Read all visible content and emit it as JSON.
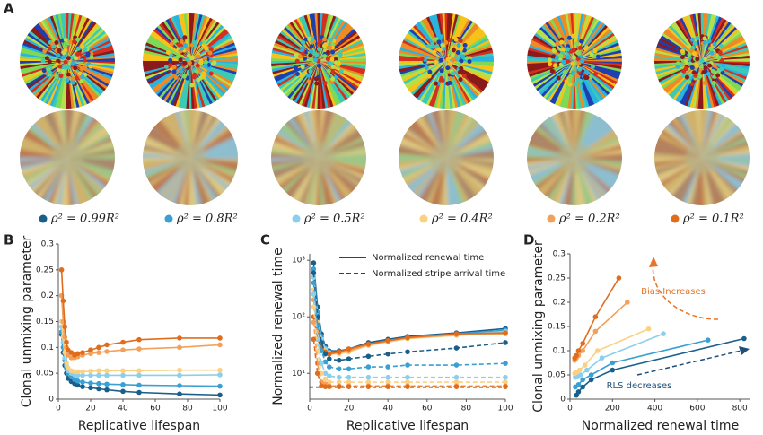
{
  "panel_a": {
    "label": "A"
  },
  "legend": [
    {
      "name": "ρ² = 0.99R²",
      "color": "#1a5f8c"
    },
    {
      "name": "ρ² = 0.8R²",
      "color": "#3a9fd2"
    },
    {
      "name": "ρ² = 0.5R²",
      "color": "#8ad0ec"
    },
    {
      "name": "ρ² = 0.4R²",
      "color": "#fbd083"
    },
    {
      "name": "ρ² = 0.2R²",
      "color": "#f3a15a"
    },
    {
      "name": "ρ² = 0.1R²",
      "color": "#e06c1c"
    }
  ],
  "chart_data": [
    {
      "label": "B",
      "type": "line",
      "xlabel": "Replicative lifespan",
      "ylabel": "Clonal unmixing parameter",
      "x": [
        2,
        3,
        4,
        5,
        6,
        8,
        10,
        12,
        15,
        20,
        25,
        30,
        40,
        50,
        75,
        100
      ],
      "xlim": [
        0,
        100
      ],
      "xticks": [
        0,
        20,
        40,
        60,
        80,
        100
      ],
      "ylim": [
        0,
        0.3
      ],
      "yticks": [
        0,
        0.05,
        0.1,
        0.15,
        0.2,
        0.25,
        0.3
      ],
      "series": [
        {
          "color": "#1a5f8c",
          "values": [
            0.125,
            0.09,
            0.065,
            0.05,
            0.04,
            0.034,
            0.03,
            0.027,
            0.024,
            0.022,
            0.02,
            0.018,
            0.015,
            0.013,
            0.01,
            0.008
          ]
        },
        {
          "color": "#3a9fd2",
          "values": [
            0.13,
            0.1,
            0.075,
            0.06,
            0.05,
            0.043,
            0.038,
            0.035,
            0.033,
            0.031,
            0.03,
            0.029,
            0.028,
            0.027,
            0.026,
            0.025
          ]
        },
        {
          "color": "#8ad0ec",
          "values": [
            0.14,
            0.11,
            0.08,
            0.065,
            0.055,
            0.05,
            0.047,
            0.046,
            0.046,
            0.046,
            0.046,
            0.046,
            0.046,
            0.046,
            0.046,
            0.047
          ]
        },
        {
          "color": "#fbd083",
          "values": [
            0.15,
            0.12,
            0.09,
            0.07,
            0.06,
            0.055,
            0.053,
            0.053,
            0.053,
            0.054,
            0.055,
            0.055,
            0.055,
            0.055,
            0.056,
            0.056
          ]
        },
        {
          "color": "#f3a15a",
          "values": [
            0.2,
            0.15,
            0.12,
            0.1,
            0.085,
            0.08,
            0.08,
            0.082,
            0.085,
            0.088,
            0.09,
            0.092,
            0.095,
            0.097,
            0.1,
            0.105
          ]
        },
        {
          "color": "#e06c1c",
          "values": [
            0.25,
            0.19,
            0.14,
            0.11,
            0.095,
            0.09,
            0.085,
            0.088,
            0.09,
            0.095,
            0.1,
            0.105,
            0.11,
            0.115,
            0.118,
            0.118
          ]
        }
      ]
    },
    {
      "label": "C",
      "type": "line",
      "log_y": true,
      "xlabel": "Replicative lifespan",
      "ylabel": "Normalized  renewal time",
      "x": [
        2,
        4,
        6,
        8,
        10,
        15,
        20,
        30,
        40,
        50,
        75,
        100
      ],
      "xlim": [
        0,
        100
      ],
      "xticks": [
        0,
        20,
        40,
        60,
        80,
        100
      ],
      "ylim": [
        3.5,
        1300
      ],
      "yticks": [
        {
          "value": 10,
          "label": "10¹"
        },
        {
          "value": 100,
          "label": "10²"
        },
        {
          "value": 1000,
          "label": "10³"
        }
      ],
      "hline": 5.7,
      "legend": [
        {
          "name": "Normalized renewal time",
          "dash": false
        },
        {
          "name": "Normalized stripe arrival time",
          "dash": true
        }
      ],
      "series": [
        {
          "color": "#1a5f8c",
          "dash": false,
          "values": [
            900,
            150,
            50,
            30,
            25,
            25,
            27,
            35,
            40,
            45,
            52,
            62
          ]
        },
        {
          "color": "#3a9fd2",
          "dash": false,
          "values": [
            700,
            120,
            45,
            28,
            24,
            24,
            26,
            33,
            38,
            43,
            50,
            58
          ]
        },
        {
          "color": "#8ad0ec",
          "dash": false,
          "values": [
            500,
            100,
            40,
            27,
            23,
            23,
            25,
            32,
            37,
            42,
            48,
            55
          ]
        },
        {
          "color": "#fbd083",
          "dash": false,
          "values": [
            300,
            80,
            35,
            25,
            22,
            22,
            24,
            31,
            36,
            41,
            47,
            52
          ]
        },
        {
          "color": "#f3a15a",
          "dash": false,
          "values": [
            200,
            60,
            30,
            24,
            22,
            23,
            25,
            32,
            37,
            42,
            48,
            50
          ]
        },
        {
          "color": "#e06c1c",
          "dash": false,
          "values": [
            100,
            40,
            28,
            24,
            22,
            24,
            27,
            33,
            38,
            43,
            50,
            52
          ]
        },
        {
          "color": "#1a5f8c",
          "dash": true,
          "values": [
            600,
            100,
            35,
            22,
            18,
            17,
            18,
            20,
            22,
            24,
            28,
            35
          ]
        },
        {
          "color": "#3a9fd2",
          "dash": true,
          "values": [
            400,
            70,
            25,
            16,
            13,
            12,
            12,
            13,
            13,
            14,
            14,
            15
          ]
        },
        {
          "color": "#8ad0ec",
          "dash": true,
          "values": [
            250,
            40,
            15,
            10,
            9,
            8.5,
            8.5,
            8.5,
            8.5,
            8.5,
            8.5,
            8.5
          ]
        },
        {
          "color": "#fbd083",
          "dash": true,
          "values": [
            150,
            25,
            10,
            8,
            7,
            7,
            7,
            7,
            7,
            7,
            7,
            7
          ]
        },
        {
          "color": "#f3a15a",
          "dash": true,
          "values": [
            80,
            15,
            7,
            6.5,
            6,
            6,
            6,
            6,
            6,
            6,
            6,
            6
          ]
        },
        {
          "color": "#e06c1c",
          "dash": true,
          "values": [
            40,
            10,
            6,
            5.8,
            5.8,
            5.8,
            5.8,
            5.8,
            5.8,
            5.8,
            5.8,
            5.8
          ]
        }
      ]
    },
    {
      "label": "D",
      "type": "line",
      "xlabel": "Normalized  renewal time",
      "ylabel": "Clonal unmixing parameter",
      "xlim": [
        0,
        850
      ],
      "xticks": [
        0,
        200,
        400,
        600,
        800
      ],
      "ylim": [
        0,
        0.3
      ],
      "yticks": [
        0,
        0.05,
        0.1,
        0.15,
        0.2,
        0.25,
        0.3
      ],
      "annotations": [
        {
          "text": "Bias Increases",
          "color": "#e8742a"
        },
        {
          "text": "RLS decreases",
          "color": "#1f4e79"
        }
      ],
      "series": [
        {
          "color": "#1a5f8c",
          "x": [
            30,
            40,
            60,
            100,
            200,
            820
          ],
          "values": [
            0.008,
            0.015,
            0.025,
            0.04,
            0.06,
            0.125
          ]
        },
        {
          "color": "#3a9fd2",
          "x": [
            25,
            40,
            60,
            100,
            200,
            650
          ],
          "values": [
            0.025,
            0.03,
            0.04,
            0.05,
            0.075,
            0.122
          ]
        },
        {
          "color": "#8ad0ec",
          "x": [
            25,
            35,
            50,
            80,
            150,
            440
          ],
          "values": [
            0.045,
            0.046,
            0.05,
            0.06,
            0.085,
            0.135
          ]
        },
        {
          "color": "#fbd083",
          "x": [
            22,
            30,
            45,
            70,
            130,
            370
          ],
          "values": [
            0.053,
            0.055,
            0.06,
            0.07,
            0.1,
            0.145
          ]
        },
        {
          "color": "#f3a15a",
          "x": [
            22,
            30,
            40,
            60,
            120,
            270
          ],
          "values": [
            0.08,
            0.085,
            0.09,
            0.1,
            0.14,
            0.2
          ]
        },
        {
          "color": "#e06c1c",
          "x": [
            22,
            30,
            40,
            60,
            120,
            230
          ],
          "values": [
            0.085,
            0.09,
            0.1,
            0.115,
            0.17,
            0.25
          ]
        }
      ]
    }
  ]
}
